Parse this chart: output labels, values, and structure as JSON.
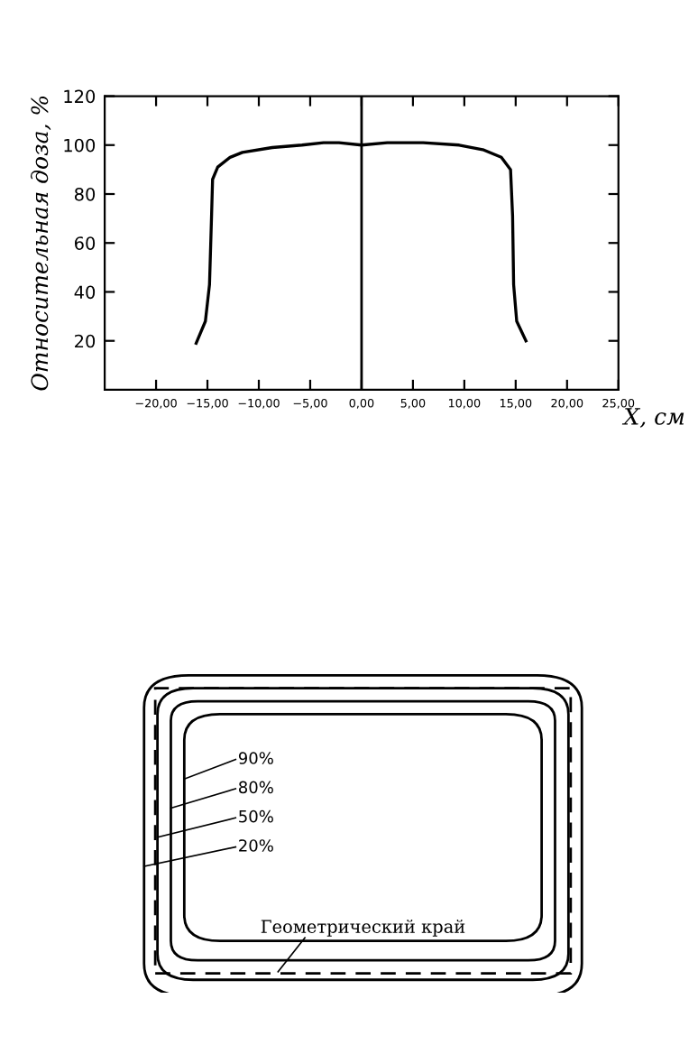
{
  "chart_data": [
    {
      "type": "line",
      "ylabel": "Относительная доза, %",
      "xlabel": "X, см",
      "series": [
        {
          "color": "#000000",
          "x": [
            -16.1,
            -15.2,
            -14.8,
            -14.6,
            -14.5,
            -14.0,
            -12.8,
            -11.6,
            -8.7,
            -5.8,
            -3.7,
            -2.2,
            0,
            2.5,
            6,
            9.5,
            11.9,
            13.6,
            14.5,
            14.7,
            14.8,
            15.1,
            16.0
          ],
          "values": [
            19,
            28,
            43,
            71,
            86,
            91,
            95,
            97,
            99,
            100,
            101,
            101,
            100,
            101,
            101,
            100,
            98,
            95,
            90,
            71,
            43,
            28,
            20
          ]
        }
      ],
      "xlim": [
        -25,
        25
      ],
      "xticks": [
        {
          "value": -20,
          "label": "−20,00"
        },
        {
          "value": -15,
          "label": "−15,00"
        },
        {
          "value": -10,
          "label": "−10,00"
        },
        {
          "value": -5,
          "label": "−5,00"
        },
        {
          "value": 0,
          "label": "0,00"
        },
        {
          "value": 5,
          "label": "5,00"
        },
        {
          "value": 10,
          "label": "10,00"
        },
        {
          "value": 15,
          "label": "15,00"
        },
        {
          "value": 20,
          "label": "20,00"
        },
        {
          "value": 25,
          "label": "25,00"
        }
      ],
      "ylim": [
        0,
        120
      ],
      "yticks": [
        20,
        40,
        60,
        80,
        100,
        120
      ],
      "ref_lines": [
        {
          "axis": "x",
          "value": 0,
          "color": "#000000"
        }
      ],
      "grid": false,
      "legend": false,
      "marker": "none",
      "line_style": "solid"
    },
    {
      "type": "other",
      "annotations": [
        "90%",
        "80%",
        "50%",
        "20%",
        "Геометрический край"
      ]
    }
  ]
}
